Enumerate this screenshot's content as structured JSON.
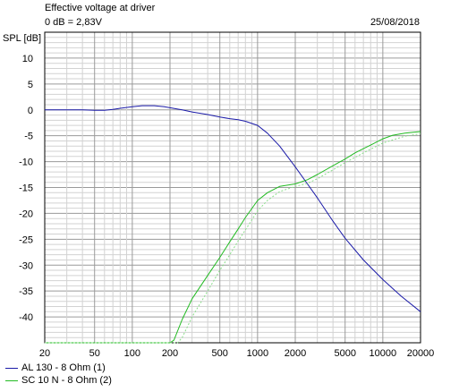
{
  "header": {
    "title": "Effective voltage at driver",
    "reference": "0 dB = 2,83V",
    "date": "25/08/2018"
  },
  "chart_data": {
    "type": "line",
    "title": "Effective voltage at driver",
    "ylabel": "SPL [dB]",
    "xscale": "log",
    "xlim": [
      20,
      20000
    ],
    "ylim": [
      -45,
      15
    ],
    "grid": true,
    "legend_position": "bottom-left",
    "xticks": [
      20,
      50,
      100,
      200,
      500,
      1000,
      2000,
      5000,
      10000,
      20000
    ],
    "xtick_labels": [
      "20",
      "50",
      "100",
      "200",
      "500",
      "1000",
      "2000",
      "5000",
      "10000",
      "20000"
    ],
    "yticks": [
      10,
      5,
      0,
      -5,
      -10,
      -15,
      -20,
      -25,
      -30,
      -35,
      -40
    ],
    "ytick_labels": [
      "10",
      "5",
      "0",
      "-5",
      "-10",
      "-15",
      "-20",
      "-25",
      "-30",
      "-35",
      "-40"
    ],
    "series": [
      {
        "name": "AL 130 - 8 Ohm (1)",
        "color": "#1a1aa8",
        "dashed": false,
        "x": [
          20,
          30,
          40,
          50,
          60,
          70,
          80,
          100,
          120,
          150,
          180,
          200,
          250,
          300,
          400,
          500,
          600,
          700,
          800,
          1000,
          1200,
          1500,
          2000,
          2500,
          3000,
          4000,
          5000,
          7000,
          10000,
          14000,
          20000
        ],
        "y": [
          0,
          0,
          0,
          -0.1,
          -0.1,
          0.1,
          0.3,
          0.6,
          0.8,
          0.8,
          0.6,
          0.4,
          0,
          -0.4,
          -0.9,
          -1.4,
          -1.7,
          -1.9,
          -2.2,
          -3.0,
          -4.5,
          -7.0,
          -11.0,
          -14.3,
          -17.0,
          -21.5,
          -24.8,
          -29.0,
          -32.8,
          -36.0,
          -39.0
        ]
      },
      {
        "name": "SC 10 N - 8 Ohm (2)",
        "color": "#22bb22",
        "dashed": false,
        "x": [
          20,
          50,
          100,
          150,
          200,
          215,
          250,
          300,
          400,
          500,
          600,
          700,
          800,
          1000,
          1200,
          1500,
          2000,
          2500,
          3000,
          4000,
          5000,
          6000,
          7000,
          8000,
          10000,
          12000,
          15000,
          20000
        ],
        "y": [
          -45,
          -45,
          -45,
          -45,
          -45,
          -44.5,
          -40.5,
          -36.5,
          -32.0,
          -28.5,
          -25.5,
          -23.0,
          -20.8,
          -17.5,
          -16.0,
          -14.8,
          -14.3,
          -13.5,
          -12.5,
          -10.8,
          -9.5,
          -8.3,
          -7.5,
          -6.8,
          -5.6,
          -4.9,
          -4.5,
          -4.2
        ]
      },
      {
        "color": "#88dd88",
        "dashed": true,
        "x": [
          20,
          200,
          230,
          250,
          300,
          400,
          500,
          600,
          700,
          800,
          1000,
          1200,
          1500,
          2000,
          2500,
          3000,
          4000,
          5000,
          7000,
          10000,
          15000,
          20000
        ],
        "y": [
          -45,
          -45,
          -45,
          -44.0,
          -40.0,
          -35.0,
          -31.0,
          -28.0,
          -25.3,
          -23.2,
          -19.5,
          -17.5,
          -15.8,
          -14.8,
          -14.2,
          -13.3,
          -11.6,
          -10.2,
          -8.3,
          -6.4,
          -5.1,
          -4.6
        ]
      }
    ]
  },
  "legend": [
    {
      "label": "AL 130 - 8 Ohm (1)",
      "color": "#1a1aa8"
    },
    {
      "label": "SC 10 N - 8 Ohm (2)",
      "color": "#22bb22"
    }
  ]
}
